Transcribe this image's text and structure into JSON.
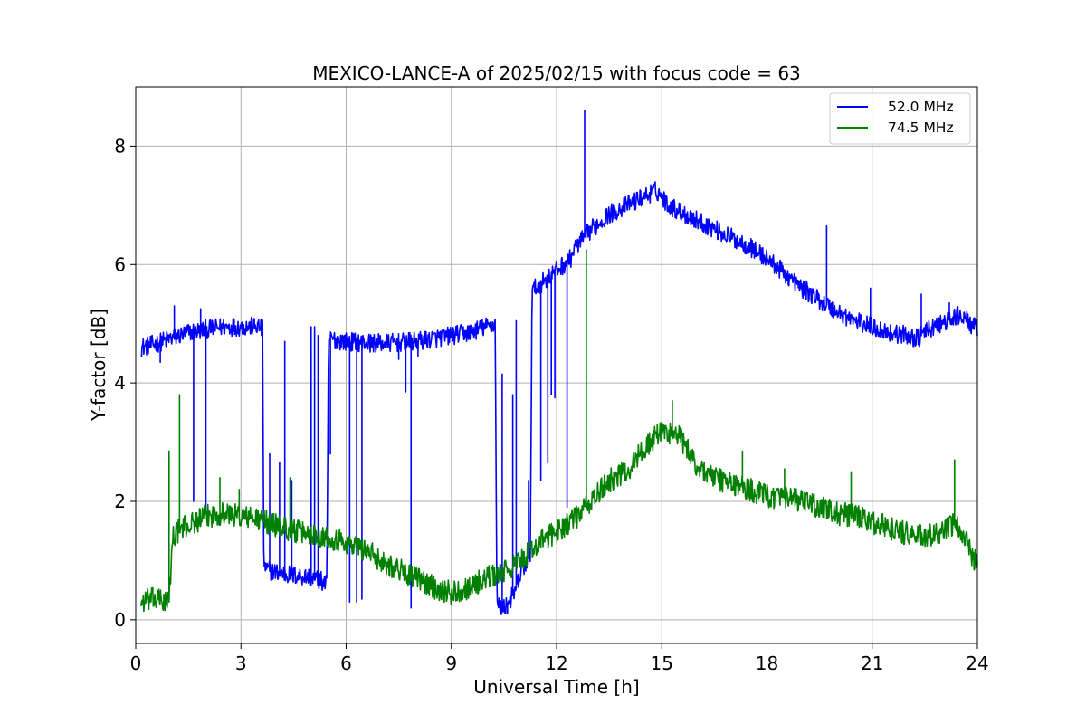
{
  "chart_data": {
    "type": "line",
    "title": "MEXICO-LANCE-A of 2025/02/15 with focus code = 63",
    "xlabel": "Universal Time [h]",
    "ylabel": "Y-factor [dB]",
    "xlim": [
      0,
      24
    ],
    "ylim": [
      -0.4,
      9.0
    ],
    "xticks": [
      0,
      3,
      6,
      9,
      12,
      15,
      18,
      21,
      24
    ],
    "yticks": [
      0,
      2,
      4,
      6,
      8
    ],
    "grid": true,
    "legend_position": "top-right",
    "series": [
      {
        "name": "52.0 MHz",
        "color": "#0000ff",
        "x": [
          0.15,
          0.5,
          1.0,
          1.5,
          2.0,
          2.5,
          3.0,
          3.5,
          3.62,
          3.65,
          3.7,
          4.0,
          4.5,
          5.0,
          5.3,
          5.45,
          5.5,
          6.0,
          6.5,
          7.0,
          7.5,
          8.0,
          8.5,
          9.0,
          9.5,
          10.0,
          10.25,
          10.3,
          10.5,
          10.8,
          11.0,
          11.25,
          11.3,
          11.6,
          12.0,
          12.4,
          12.5,
          12.55,
          13.0,
          13.5,
          14.0,
          14.5,
          14.85,
          15.2,
          15.5,
          16.0,
          16.5,
          17.0,
          17.5,
          18.0,
          18.5,
          19.0,
          19.5,
          20.0,
          20.5,
          21.0,
          21.5,
          22.0,
          22.3,
          22.6,
          23.0,
          23.5,
          24.0
        ],
        "y": [
          4.6,
          4.65,
          4.75,
          4.85,
          4.9,
          4.95,
          4.95,
          4.95,
          4.9,
          1.0,
          0.85,
          0.8,
          0.75,
          0.72,
          0.65,
          0.6,
          4.75,
          4.7,
          4.68,
          4.67,
          4.68,
          4.7,
          4.75,
          4.8,
          4.85,
          4.95,
          5.0,
          0.25,
          0.2,
          0.45,
          0.8,
          1.1,
          5.55,
          5.7,
          5.9,
          6.1,
          6.25,
          6.3,
          6.6,
          6.85,
          7.0,
          7.15,
          7.25,
          7.0,
          6.9,
          6.75,
          6.6,
          6.45,
          6.3,
          6.1,
          5.85,
          5.6,
          5.4,
          5.2,
          5.05,
          4.95,
          4.85,
          4.8,
          4.75,
          4.9,
          5.0,
          5.15,
          4.9
        ],
        "spikes": [
          [
            0.7,
            4.35
          ],
          [
            1.1,
            5.3
          ],
          [
            1.65,
            2.0
          ],
          [
            1.85,
            5.25
          ],
          [
            2.0,
            1.8
          ],
          [
            3.82,
            2.8
          ],
          [
            4.1,
            2.65
          ],
          [
            4.25,
            4.7
          ],
          [
            4.45,
            2.35
          ],
          [
            5.0,
            4.95
          ],
          [
            5.1,
            4.95
          ],
          [
            5.2,
            4.8
          ],
          [
            5.55,
            2.8
          ],
          [
            6.1,
            0.3
          ],
          [
            6.3,
            0.3
          ],
          [
            6.45,
            0.35
          ],
          [
            7.5,
            4.4
          ],
          [
            7.7,
            3.85
          ],
          [
            7.85,
            0.2
          ],
          [
            8.05,
            4.45
          ],
          [
            10.45,
            4.15
          ],
          [
            10.6,
            0.1
          ],
          [
            10.75,
            3.8
          ],
          [
            10.85,
            5.05
          ],
          [
            11.2,
            2.35
          ],
          [
            11.55,
            2.35
          ],
          [
            11.75,
            2.65
          ],
          [
            11.85,
            3.8
          ],
          [
            11.95,
            3.75
          ],
          [
            12.3,
            1.9
          ],
          [
            12.8,
            8.6
          ],
          [
            19.7,
            6.65
          ],
          [
            20.95,
            5.6
          ],
          [
            22.4,
            5.5
          ],
          [
            23.2,
            5.35
          ]
        ],
        "noise": 0.16
      },
      {
        "name": "74.5 MHz",
        "color": "#008000",
        "x": [
          0.15,
          0.5,
          0.95,
          1.05,
          1.2,
          1.5,
          2.0,
          2.5,
          3.0,
          3.5,
          4.0,
          4.5,
          5.0,
          5.5,
          6.0,
          6.5,
          7.0,
          7.5,
          8.0,
          8.5,
          9.0,
          9.5,
          10.0,
          10.5,
          11.0,
          11.5,
          12.0,
          12.5,
          13.0,
          13.5,
          14.0,
          14.5,
          15.0,
          15.5,
          16.0,
          16.5,
          17.0,
          17.5,
          18.0,
          18.5,
          19.0,
          19.5,
          20.0,
          20.5,
          21.0,
          21.5,
          22.0,
          22.5,
          23.0,
          23.4,
          23.7,
          24.0
        ],
        "y": [
          0.3,
          0.35,
          0.3,
          1.4,
          1.5,
          1.6,
          1.75,
          1.8,
          1.75,
          1.7,
          1.6,
          1.5,
          1.45,
          1.4,
          1.3,
          1.2,
          1.0,
          0.85,
          0.7,
          0.55,
          0.45,
          0.55,
          0.7,
          0.8,
          1.0,
          1.3,
          1.5,
          1.7,
          2.0,
          2.35,
          2.5,
          2.9,
          3.2,
          3.1,
          2.6,
          2.4,
          2.3,
          2.2,
          2.1,
          2.05,
          2.0,
          1.9,
          1.8,
          1.75,
          1.65,
          1.55,
          1.45,
          1.4,
          1.45,
          1.65,
          1.3,
          0.9
        ],
        "spikes": [
          [
            0.95,
            2.85
          ],
          [
            1.25,
            3.8
          ],
          [
            2.4,
            2.4
          ],
          [
            2.95,
            2.2
          ],
          [
            4.4,
            2.4
          ],
          [
            12.85,
            6.25
          ],
          [
            15.3,
            3.7
          ],
          [
            17.3,
            2.85
          ],
          [
            18.5,
            2.55
          ],
          [
            20.4,
            2.5
          ],
          [
            23.35,
            2.7
          ]
        ],
        "noise": 0.2
      }
    ]
  }
}
